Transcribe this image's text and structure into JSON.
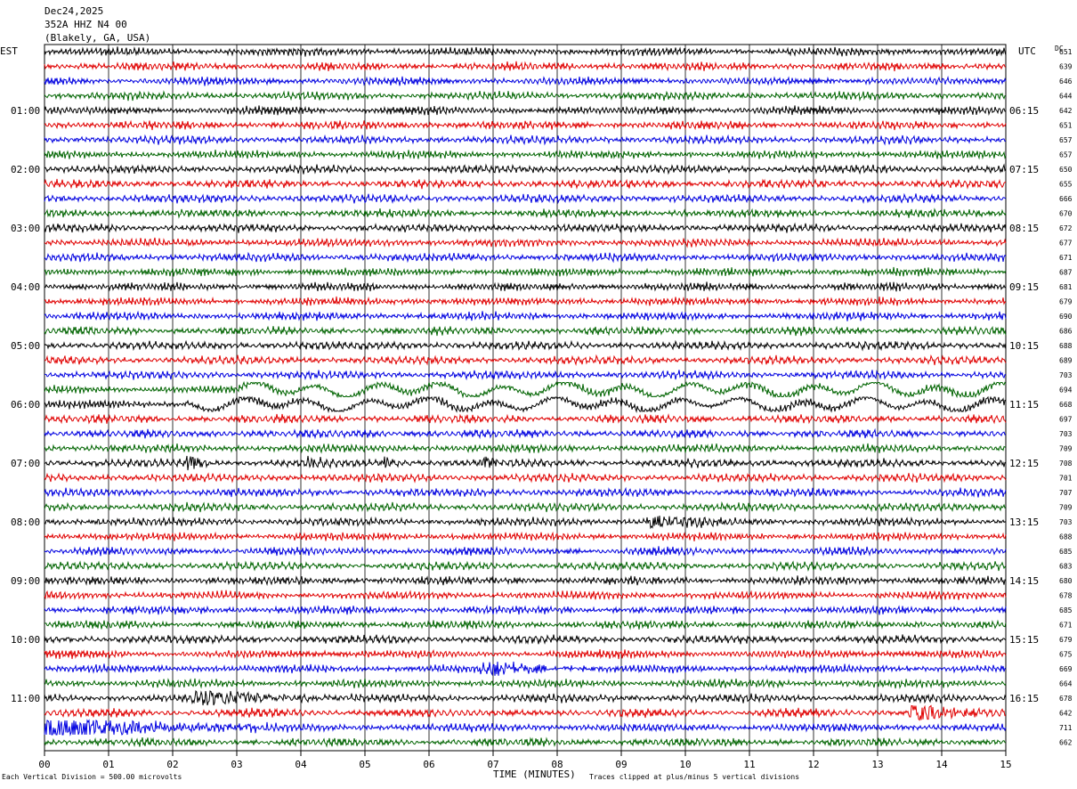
{
  "header": {
    "date": "Dec24,2025",
    "station": "352A HHZ N4 00",
    "location": "(Blakely, GA, USA)"
  },
  "left_axis_title": "EST",
  "right_axis_title": "UTC",
  "dc_header": "DC",
  "footer": {
    "scale_note": "Each Vertical Division =  500.00 microvolts",
    "xlabel": "TIME (MINUTES)",
    "clip_note": "Traces clipped at plus/minus 5 vertical divisions"
  },
  "chart_data": {
    "type": "line",
    "title": "352A HHZ N4 00",
    "xlabel": "TIME (MINUTES)",
    "xlim": [
      0,
      15
    ],
    "x_ticks": [
      "00",
      "01",
      "02",
      "03",
      "04",
      "05",
      "06",
      "07",
      "08",
      "09",
      "10",
      "11",
      "12",
      "13",
      "14",
      "15"
    ],
    "trace_colors": [
      "#000000",
      "#e00000",
      "#0000e0",
      "#006400"
    ],
    "left_hour_labels": [
      "01:00",
      "02:00",
      "03:00",
      "04:00",
      "05:00",
      "06:00",
      "07:00",
      "08:00",
      "09:00",
      "10:00",
      "11:00"
    ],
    "right_hour_labels": [
      "06:15",
      "07:15",
      "08:15",
      "09:15",
      "10:15",
      "11:15",
      "12:15",
      "13:15",
      "14:15",
      "15:15",
      "16:15"
    ],
    "dc_offsets": [
      651,
      639,
      646,
      644,
      642,
      651,
      657,
      657,
      650,
      655,
      666,
      670,
      672,
      677,
      671,
      687,
      681,
      679,
      690,
      686,
      688,
      689,
      703,
      694,
      668,
      697,
      703,
      709,
      708,
      701,
      707,
      709,
      703,
      688,
      685,
      683,
      680,
      678,
      685,
      671,
      679,
      675,
      669,
      664,
      678,
      642,
      711,
      662
    ],
    "events": [
      {
        "trace": 23,
        "start_min": 3.0,
        "end_min": 15.0,
        "strength": 1.8,
        "kind": "longperiod"
      },
      {
        "trace": 24,
        "start_min": 2.2,
        "end_min": 15.0,
        "strength": 1.6,
        "kind": "longperiod"
      },
      {
        "trace": 28,
        "start_min": 2.2,
        "end_min": 2.6,
        "strength": 2.2
      },
      {
        "trace": 28,
        "start_min": 4.1,
        "end_min": 4.5,
        "strength": 2.0
      },
      {
        "trace": 28,
        "start_min": 5.3,
        "end_min": 5.8,
        "strength": 2.4
      },
      {
        "trace": 28,
        "start_min": 6.8,
        "end_min": 7.3,
        "strength": 2.0
      },
      {
        "trace": 32,
        "start_min": 9.4,
        "end_min": 11.2,
        "strength": 1.9
      },
      {
        "trace": 42,
        "start_min": 6.8,
        "end_min": 8.8,
        "strength": 1.7
      },
      {
        "trace": 44,
        "start_min": 2.3,
        "end_min": 5.0,
        "strength": 2.0
      },
      {
        "trace": 45,
        "start_min": 13.5,
        "end_min": 15.0,
        "strength": 2.4
      },
      {
        "trace": 46,
        "start_min": 0.0,
        "end_min": 3.8,
        "strength": 3.0
      }
    ]
  }
}
